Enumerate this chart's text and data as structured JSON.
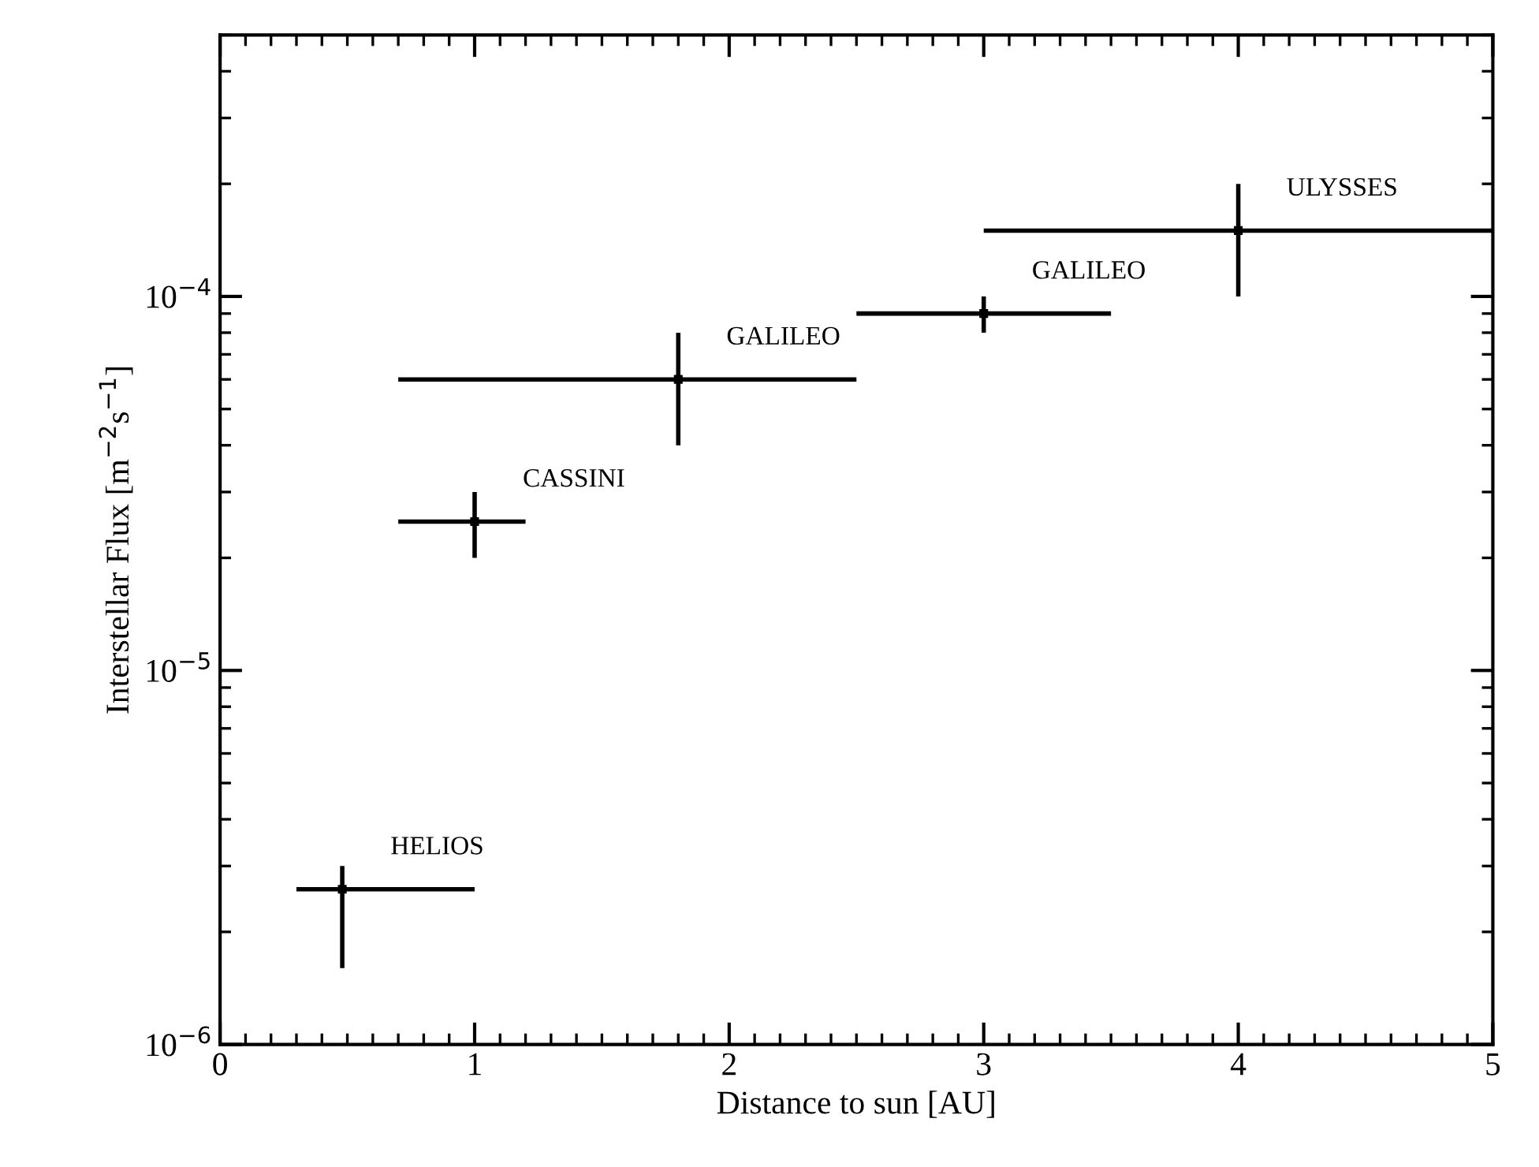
{
  "chart_data": {
    "type": "scatter",
    "log": "y",
    "grid": false,
    "legend": false,
    "xlabel": "Distance to sun [AU]",
    "ylabel": "Interstellar Flux [m$^{−2}$s$^{−1}$]",
    "x": [
      0.48,
      1.0,
      1.8,
      3.0,
      4.0
    ],
    "values": [
      2.6e-06,
      2.5e-05,
      6e-05,
      9e-05,
      0.00015
    ],
    "color": "#000000",
    "errors": [
      [
        1.6e-06,
        3e-06
      ],
      [
        2e-05,
        3e-05
      ],
      [
        4e-05,
        8e-05
      ],
      [
        8e-05,
        0.0001
      ],
      [
        0.0001,
        0.0002
      ]
    ],
    "xerrors": [
      [
        0.3,
        1.0
      ],
      [
        0.7,
        1.2
      ],
      [
        0.7,
        2.5
      ],
      [
        2.5,
        3.5
      ],
      [
        3.0,
        5.0
      ]
    ],
    "annotations": [
      {
        "text": "HELIOS",
        "x": 0.48,
        "y": 2.6e-06
      },
      {
        "text": "CASSINI",
        "x": 1.0,
        "y": 2.5e-05
      },
      {
        "text": "GALILEO",
        "x": 1.8,
        "y": 6e-05
      },
      {
        "text": "GALILEO",
        "x": 3.0,
        "y": 9e-05
      },
      {
        "text": "ULYSSES",
        "x": 4.0,
        "y": 0.00015
      }
    ],
    "xlim": [
      0,
      5
    ],
    "xticks": [
      0,
      1,
      2,
      3,
      4,
      5
    ],
    "ylim": [
      1e-06,
      0.0005
    ],
    "yticks": [
      {
        "value": 1e-06,
        "label": "10$^{−6}$"
      },
      {
        "value": 1e-05,
        "label": "10$^{−5}$"
      },
      {
        "value": 0.0001,
        "label": "10$^{−4}$"
      }
    ]
  }
}
